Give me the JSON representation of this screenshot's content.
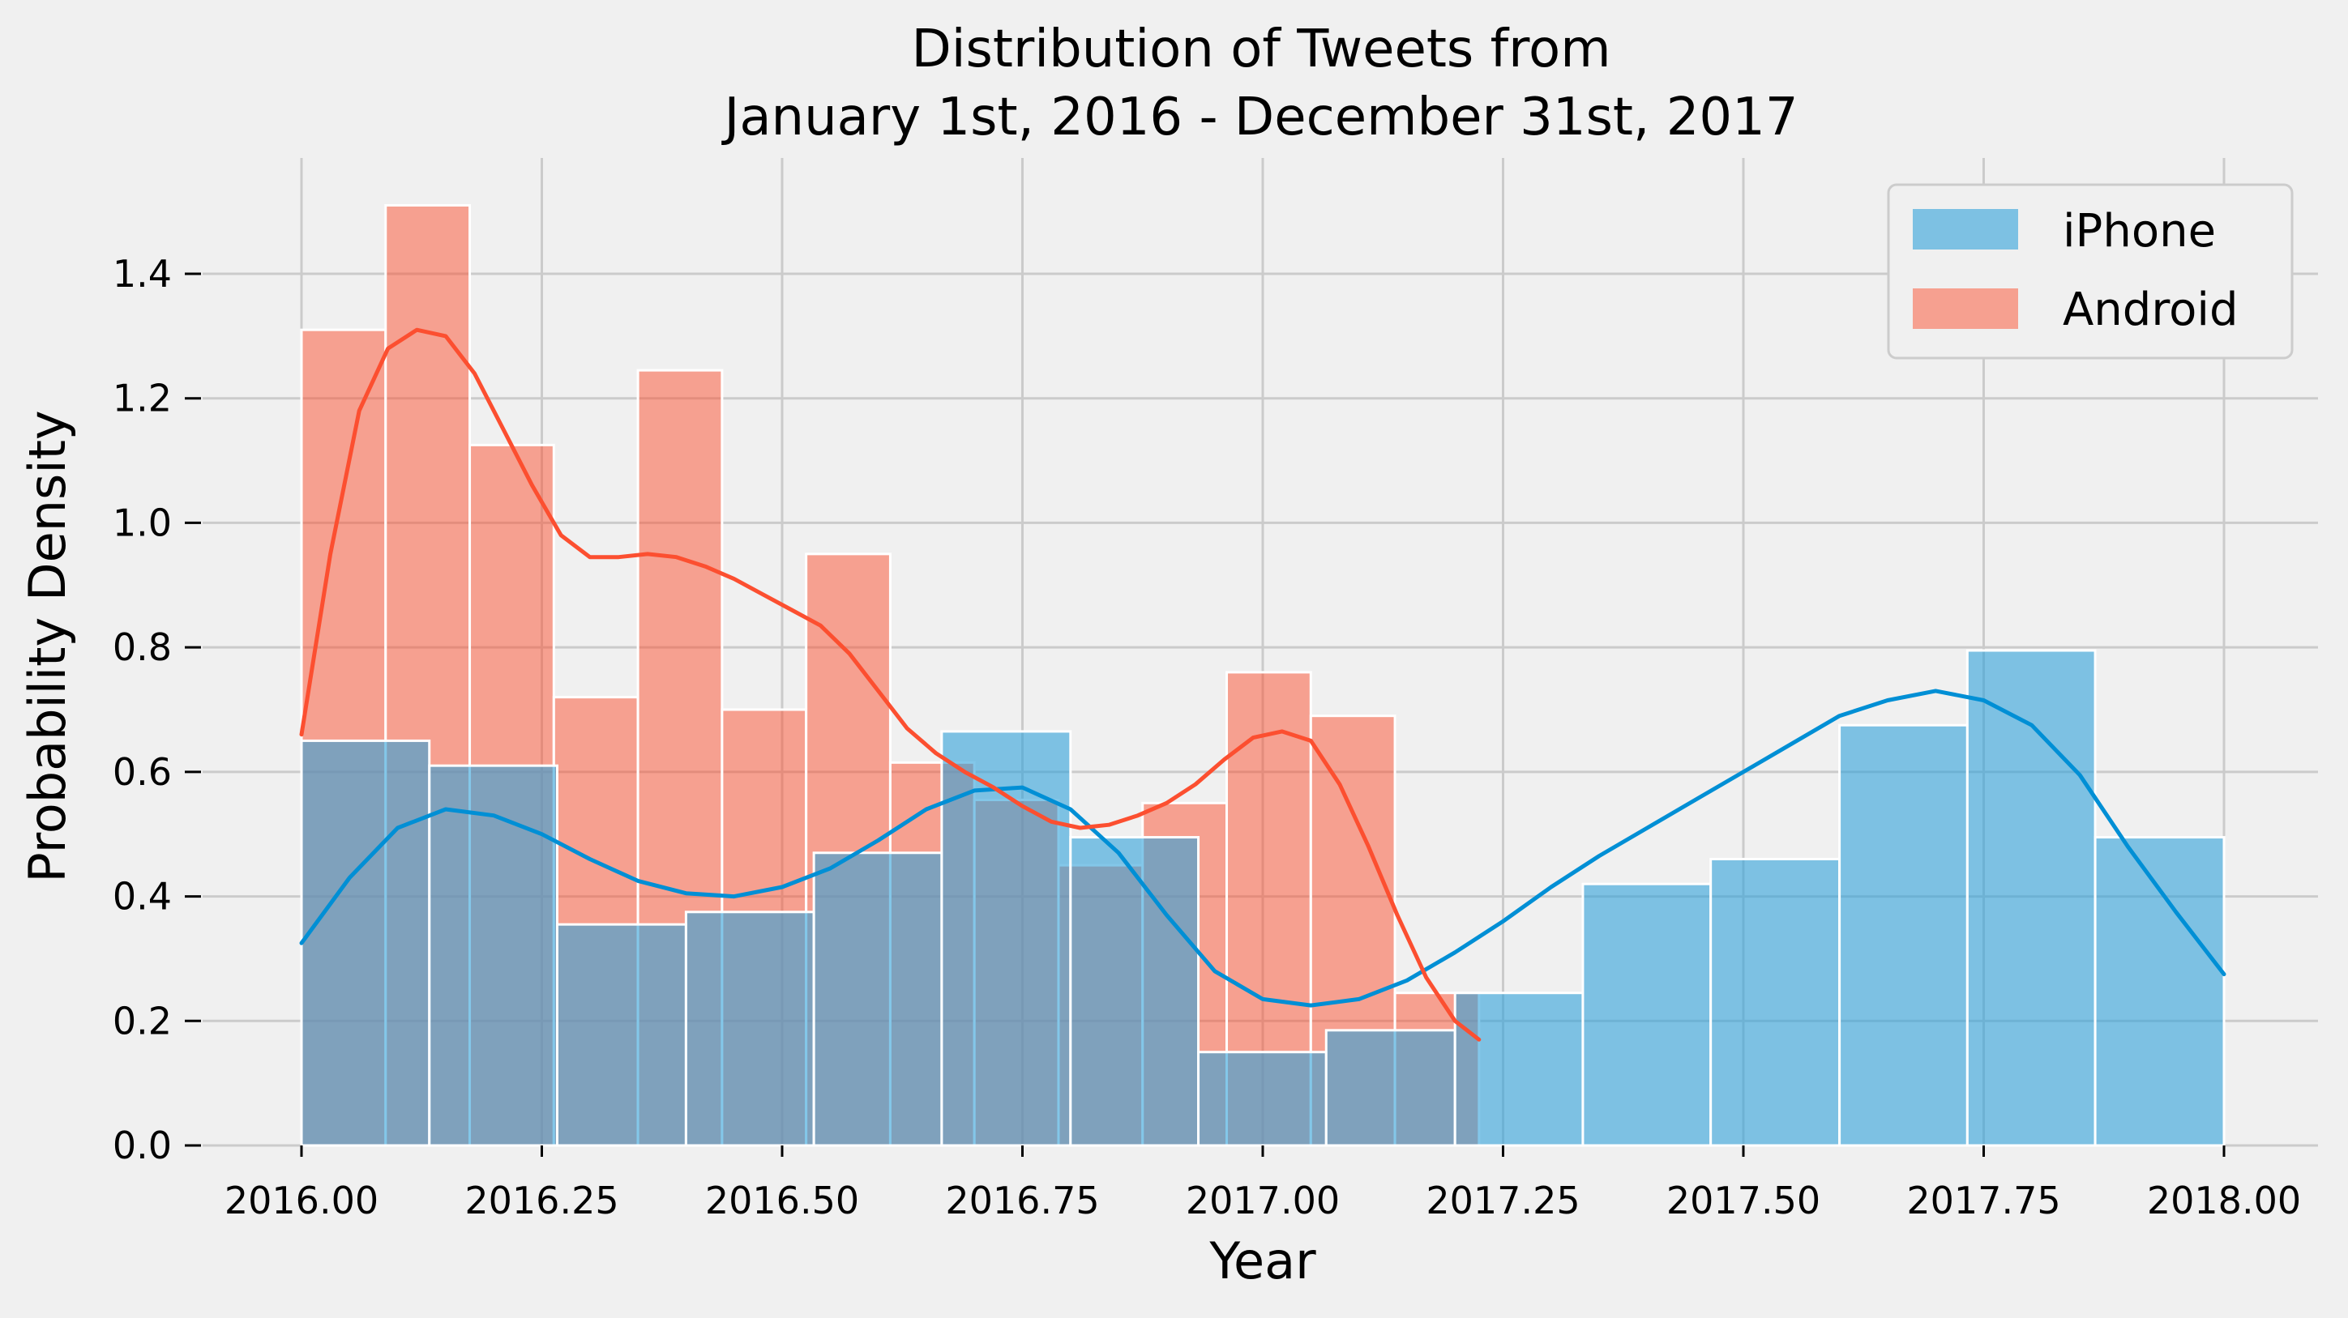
{
  "chart_data": {
    "type": "histogram",
    "title_lines": [
      "Distribution of Tweets from",
      "January 1st, 2016 - December 31st, 2017"
    ],
    "xlabel": "Year",
    "ylabel": "Probability Density",
    "xlim": [
      2015.9,
      2018.1
    ],
    "ylim": [
      0,
      1.58
    ],
    "x_ticks": [
      2016.0,
      2016.25,
      2016.5,
      2016.75,
      2017.0,
      2017.25,
      2017.5,
      2017.75,
      2018.0
    ],
    "x_tick_labels": [
      "2016.00",
      "2016.25",
      "2016.50",
      "2016.75",
      "2017.00",
      "2017.25",
      "2017.50",
      "2017.75",
      "2018.00"
    ],
    "y_ticks": [
      0.0,
      0.2,
      0.4,
      0.6,
      0.8,
      1.0,
      1.2,
      1.4
    ],
    "y_tick_labels": [
      "0.0",
      "0.2",
      "0.4",
      "0.6",
      "0.8",
      "1.0",
      "1.2",
      "1.4"
    ],
    "grid": true,
    "legend_position": "top-right",
    "colors": {
      "iphone": "#30a2da",
      "android": "#fc4f30",
      "background": "#f0f0f0",
      "grid": "#cbcbcb"
    },
    "series": [
      {
        "name": "iPhone",
        "bin_edges": [
          2016.0,
          2016.133,
          2016.266,
          2016.4,
          2016.533,
          2016.666,
          2016.8,
          2016.933,
          2017.066,
          2017.2,
          2017.333,
          2017.466,
          2017.6,
          2017.733,
          2017.866,
          2018.0
        ],
        "densities": [
          0.65,
          0.61,
          0.355,
          0.375,
          0.47,
          0.665,
          0.495,
          0.15,
          0.185,
          0.245,
          0.42,
          0.46,
          0.675,
          0.795,
          0.495
        ],
        "kde": {
          "x": [
            2016.0,
            2016.05,
            2016.1,
            2016.15,
            2016.2,
            2016.25,
            2016.3,
            2016.35,
            2016.4,
            2016.45,
            2016.5,
            2016.55,
            2016.6,
            2016.65,
            2016.7,
            2016.75,
            2016.8,
            2016.85,
            2016.9,
            2016.95,
            2017.0,
            2017.05,
            2017.1,
            2017.15,
            2017.2,
            2017.25,
            2017.3,
            2017.35,
            2017.4,
            2017.45,
            2017.5,
            2017.55,
            2017.6,
            2017.65,
            2017.7,
            2017.75,
            2017.8,
            2017.85,
            2017.9,
            2017.95,
            2018.0
          ],
          "y": [
            0.325,
            0.43,
            0.51,
            0.54,
            0.53,
            0.5,
            0.46,
            0.425,
            0.405,
            0.4,
            0.415,
            0.445,
            0.49,
            0.54,
            0.57,
            0.575,
            0.54,
            0.47,
            0.37,
            0.28,
            0.235,
            0.225,
            0.235,
            0.265,
            0.31,
            0.36,
            0.415,
            0.465,
            0.51,
            0.555,
            0.6,
            0.645,
            0.69,
            0.715,
            0.73,
            0.715,
            0.675,
            0.595,
            0.48,
            0.375,
            0.275
          ]
        }
      },
      {
        "name": "Android",
        "bin_edges": [
          2016.0,
          2016.0875,
          2016.175,
          2016.2625,
          2016.35,
          2016.4375,
          2016.525,
          2016.6125,
          2016.7,
          2016.7875,
          2016.875,
          2016.9625,
          2017.05,
          2017.1375,
          2017.225
        ],
        "densities": [
          1.31,
          1.51,
          1.125,
          0.72,
          1.245,
          0.7,
          0.95,
          0.615,
          0.555,
          0.45,
          0.55,
          0.76,
          0.69,
          0.245
        ],
        "kde": {
          "x": [
            2016.0,
            2016.03,
            2016.06,
            2016.09,
            2016.12,
            2016.15,
            2016.18,
            2016.21,
            2016.24,
            2016.27,
            2016.3,
            2016.33,
            2016.36,
            2016.39,
            2016.42,
            2016.45,
            2016.48,
            2016.51,
            2016.54,
            2016.57,
            2016.6,
            2016.63,
            2016.66,
            2016.69,
            2016.72,
            2016.75,
            2016.78,
            2016.81,
            2016.84,
            2016.87,
            2016.9,
            2016.93,
            2016.96,
            2016.99,
            2017.02,
            2017.05,
            2017.08,
            2017.11,
            2017.14,
            2017.17,
            2017.2,
            2017.225
          ],
          "y": [
            0.66,
            0.95,
            1.18,
            1.28,
            1.31,
            1.3,
            1.24,
            1.15,
            1.06,
            0.98,
            0.945,
            0.945,
            0.95,
            0.945,
            0.93,
            0.91,
            0.885,
            0.86,
            0.835,
            0.79,
            0.73,
            0.67,
            0.63,
            0.6,
            0.575,
            0.545,
            0.52,
            0.51,
            0.515,
            0.53,
            0.55,
            0.58,
            0.62,
            0.655,
            0.665,
            0.65,
            0.58,
            0.48,
            0.37,
            0.27,
            0.2,
            0.17
          ]
        }
      }
    ]
  }
}
